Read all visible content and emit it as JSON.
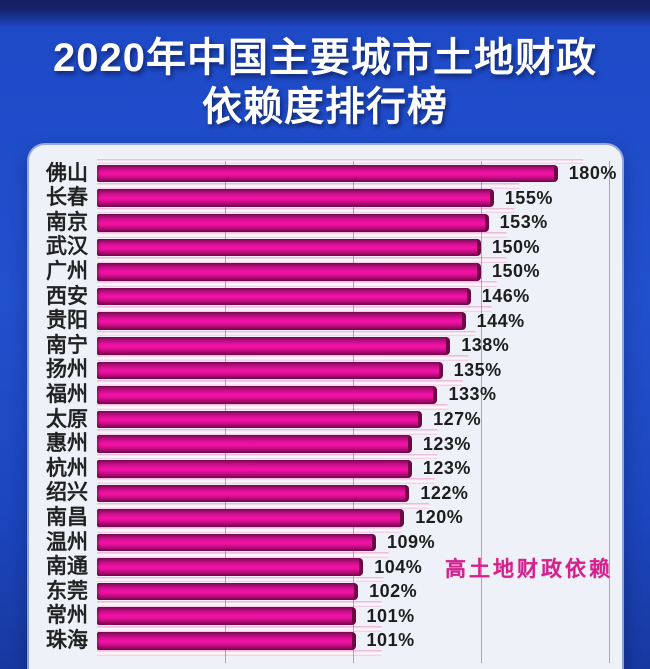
{
  "title": {
    "line1": "2020年中国主要城市土地财政",
    "line2": "依赖度排行榜"
  },
  "chart_data": {
    "type": "bar",
    "orientation": "horizontal",
    "title": "2020年中国主要城市土地财政依赖度排行榜",
    "categories": [
      "佛山",
      "长春",
      "南京",
      "武汉",
      "广州",
      "西安",
      "贵阳",
      "南宁",
      "扬州",
      "福州",
      "太原",
      "惠州",
      "杭州",
      "绍兴",
      "南昌",
      "温州",
      "南通",
      "东莞",
      "常州",
      "珠海"
    ],
    "values": [
      180,
      155,
      153,
      150,
      150,
      146,
      144,
      138,
      135,
      133,
      127,
      123,
      123,
      122,
      120,
      109,
      104,
      102,
      101,
      101
    ],
    "value_suffix": "%",
    "xlim": [
      0,
      200
    ],
    "gridlines_percent": [
      50,
      100,
      150,
      200
    ],
    "grid": "on",
    "legend": "none",
    "annotation": "高土地财政依赖"
  },
  "colors": {
    "background_blue": "#2150cd",
    "top_band_navy": "#131e5e",
    "panel_bg": "#eef2f8",
    "bar_bright": "#f112a6",
    "bar_dark": "#7a0851",
    "gap_stripe": "#eec9e3",
    "annotation_pink": "#d6208e",
    "label_dark": "#1d1d1d",
    "gridline": "#5a6473",
    "title_text": "#ffffff"
  }
}
